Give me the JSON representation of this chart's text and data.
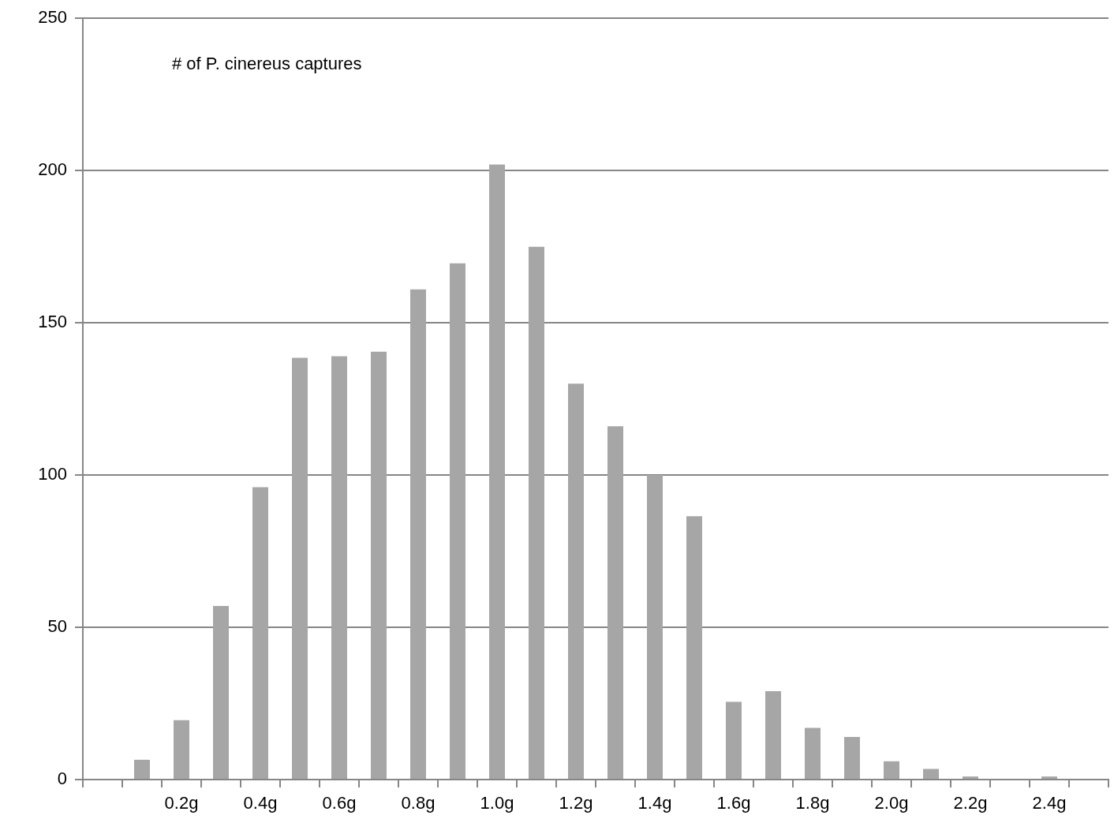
{
  "chart_data": {
    "type": "bar",
    "annotations": [
      "# of P. cinereus captures"
    ],
    "categories": [
      null,
      null,
      "0.2g",
      null,
      "0.4g",
      null,
      "0.6g",
      null,
      "0.8g",
      null,
      "1.0g",
      null,
      "1.2g",
      null,
      "1.4g",
      null,
      "1.6g",
      null,
      "1.8g",
      null,
      "2.0g",
      null,
      "2.2g",
      null,
      "2.4g",
      null
    ],
    "values": [
      0,
      6.5,
      19.5,
      57,
      96,
      138.5,
      139,
      140.5,
      161,
      169.5,
      202,
      175,
      130,
      116,
      100,
      86.5,
      25.5,
      29,
      17,
      14,
      6,
      3.5,
      1,
      0,
      1,
      0
    ],
    "color": "#a6a6a6",
    "ylim": [
      0,
      250
    ],
    "yticks": [
      0,
      50,
      100,
      150,
      200,
      250
    ],
    "grid": "y"
  }
}
